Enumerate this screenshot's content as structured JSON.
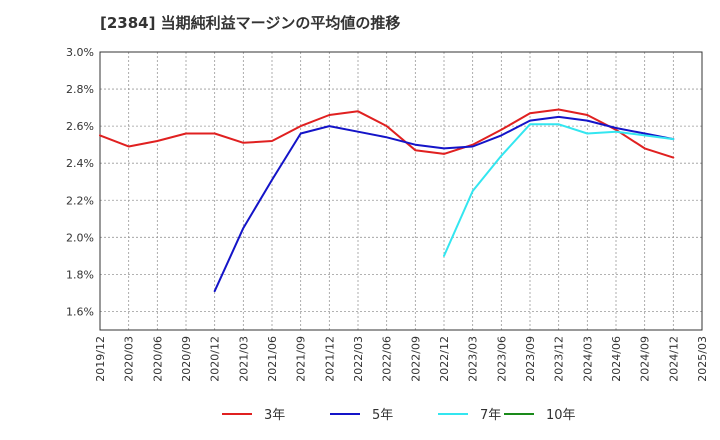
{
  "chart_data": {
    "type": "line",
    "title": "[2384]  当期純利益マージンの平均値の推移",
    "xlabel": "",
    "ylabel": "",
    "x_ticks": [
      "2019/12",
      "2020/03",
      "2020/06",
      "2020/09",
      "2020/12",
      "2021/03",
      "2021/06",
      "2021/09",
      "2021/12",
      "2022/03",
      "2022/06",
      "2022/09",
      "2022/12",
      "2023/03",
      "2023/06",
      "2023/09",
      "2023/12",
      "2024/03",
      "2024/06",
      "2024/09",
      "2024/12",
      "2025/03"
    ],
    "y_ticks": [
      "1.6%",
      "1.8%",
      "2.0%",
      "2.2%",
      "2.4%",
      "2.6%",
      "2.8%",
      "3.0%"
    ],
    "ylim": [
      1.5,
      3.0
    ],
    "y_unit": "%",
    "grid": true,
    "legend_position": "bottom",
    "series": [
      {
        "name": "3年",
        "color": "#e02020",
        "x": [
          "2019/12",
          "2020/03",
          "2020/06",
          "2020/09",
          "2020/12",
          "2021/03",
          "2021/06",
          "2021/09",
          "2021/12",
          "2022/03",
          "2022/06",
          "2022/09",
          "2022/12",
          "2023/03",
          "2023/06",
          "2023/09",
          "2023/12",
          "2024/03",
          "2024/06",
          "2024/09",
          "2024/12"
        ],
        "values": [
          2.55,
          2.49,
          2.52,
          2.56,
          2.56,
          2.51,
          2.52,
          2.6,
          2.66,
          2.68,
          2.6,
          2.47,
          2.45,
          2.5,
          2.58,
          2.67,
          2.69,
          2.66,
          2.58,
          2.48,
          2.43
        ]
      },
      {
        "name": "5年",
        "color": "#1414c8",
        "x": [
          "2020/12",
          "2021/03",
          "2021/06",
          "2021/09",
          "2021/12",
          "2022/03",
          "2022/06",
          "2022/09",
          "2022/12",
          "2023/03",
          "2023/06",
          "2023/09",
          "2023/12",
          "2024/03",
          "2024/06",
          "2024/09",
          "2024/12"
        ],
        "values": [
          1.71,
          2.05,
          2.31,
          2.56,
          2.6,
          2.57,
          2.54,
          2.5,
          2.48,
          2.49,
          2.55,
          2.63,
          2.65,
          2.63,
          2.59,
          2.56,
          2.53
        ]
      },
      {
        "name": "7年",
        "color": "#33e6f0",
        "x": [
          "2022/12",
          "2023/03",
          "2023/06",
          "2023/09",
          "2023/12",
          "2024/03",
          "2024/06",
          "2024/09",
          "2024/12"
        ],
        "values": [
          1.9,
          2.25,
          2.44,
          2.61,
          2.61,
          2.56,
          2.57,
          2.55,
          2.53
        ]
      },
      {
        "name": "10年",
        "color": "#1a8a1a",
        "x": [],
        "values": []
      }
    ]
  }
}
